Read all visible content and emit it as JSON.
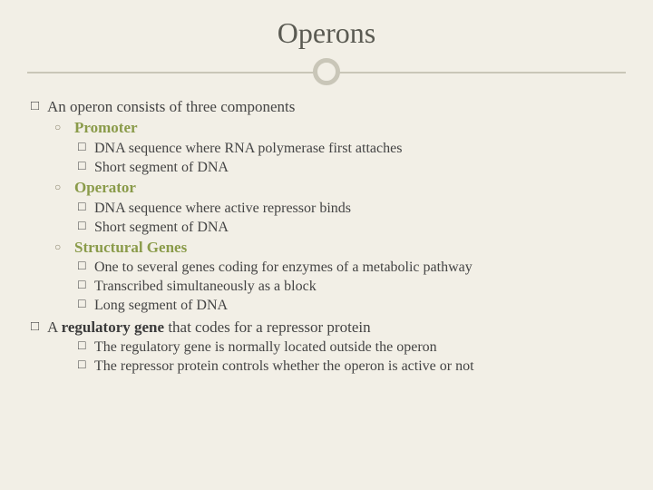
{
  "colors": {
    "background": "#f2efe6",
    "title": "#5a5a52",
    "divider": "#c9c6b8",
    "body_text": "#444444",
    "accent_green": "#8a9b4a",
    "hollow_bullet": "#8a836a"
  },
  "typography": {
    "title_fontsize": 32,
    "body_fontsize": 17,
    "sub_fontsize": 16,
    "font_family": "Georgia, serif"
  },
  "title": "Operons",
  "main1": {
    "prefix": "An operon consists of three components",
    "items": [
      {
        "label": "Promoter",
        "subs": [
          "DNA sequence where RNA polymerase first attaches",
          "Short segment of DNA"
        ]
      },
      {
        "label": "Operator",
        "subs": [
          "DNA sequence where active repressor binds",
          "Short segment of DNA"
        ]
      },
      {
        "label": "Structural Genes",
        "subs": [
          "One to several genes coding for enzymes of a metabolic pathway",
          "Transcribed simultaneously as a block",
          "Long segment of DNA"
        ]
      }
    ]
  },
  "main2": {
    "prefix_a": "A ",
    "bold": "regulatory gene",
    "prefix_b": " that codes for a repressor protein",
    "subs": [
      "The regulatory gene is normally located outside the operon",
      "The repressor protein controls whether the operon is active or not"
    ]
  }
}
